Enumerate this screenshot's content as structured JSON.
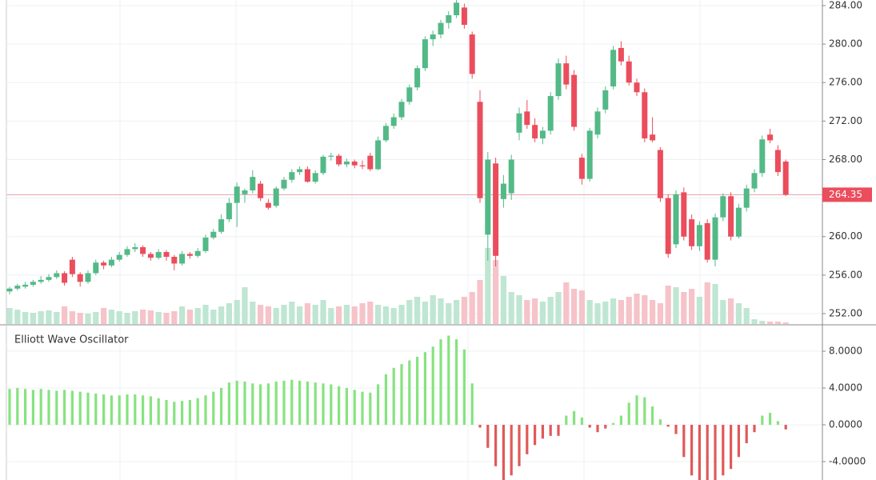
{
  "chart_data": [
    {
      "type": "candlestick",
      "ylim": [
        250.92,
        284.58
      ],
      "yticks": [
        {
          "value": 252,
          "label": "252.00"
        },
        {
          "value": 256,
          "label": "256.00"
        },
        {
          "value": 260,
          "label": "260.00"
        },
        {
          "value": 264,
          "label": "264.00"
        },
        {
          "value": 268,
          "label": "268.00"
        },
        {
          "value": 272,
          "label": "272.00"
        },
        {
          "value": 276,
          "label": "276.00"
        },
        {
          "value": 280,
          "label": "280.00"
        },
        {
          "value": 284,
          "label": "284.00"
        }
      ],
      "grid": true,
      "up_color": "#53b987",
      "down_color": "#eb4d5c",
      "volume_up_color": "#bfe6d2",
      "volume_down_color": "#f6c3c9",
      "last_price": {
        "value": 264.35,
        "label": "264.35"
      },
      "ohlc": [
        [
          254.3,
          254.8,
          254.0,
          254.6
        ],
        [
          254.6,
          255.1,
          254.4,
          254.9
        ],
        [
          254.8,
          255.3,
          254.6,
          255.0
        ],
        [
          255.0,
          255.5,
          254.8,
          255.3
        ],
        [
          255.3,
          255.9,
          255.1,
          255.5
        ],
        [
          255.5,
          256.1,
          255.3,
          255.8
        ],
        [
          255.8,
          256.5,
          255.6,
          256.2
        ],
        [
          256.2,
          256.4,
          254.9,
          255.2
        ],
        [
          257.6,
          257.9,
          255.8,
          256.1
        ],
        [
          256.1,
          256.3,
          254.8,
          255.3
        ],
        [
          255.3,
          256.5,
          255.1,
          256.2
        ],
        [
          256.2,
          257.6,
          256.0,
          257.3
        ],
        [
          257.3,
          257.5,
          256.6,
          257.0
        ],
        [
          257.0,
          257.9,
          256.8,
          257.6
        ],
        [
          257.6,
          258.4,
          257.4,
          258.1
        ],
        [
          258.1,
          259.0,
          257.9,
          258.7
        ],
        [
          258.7,
          259.3,
          258.4,
          258.9
        ],
        [
          258.9,
          259.1,
          257.9,
          258.2
        ],
        [
          258.2,
          258.4,
          257.5,
          257.8
        ],
        [
          257.8,
          258.7,
          257.6,
          258.4
        ],
        [
          258.4,
          258.6,
          257.5,
          257.9
        ],
        [
          257.9,
          258.1,
          256.5,
          257.2
        ],
        [
          257.2,
          258.5,
          257.0,
          258.2
        ],
        [
          258.2,
          258.4,
          257.7,
          258.0
        ],
        [
          258.0,
          258.8,
          257.8,
          258.5
        ],
        [
          258.5,
          260.2,
          258.3,
          259.9
        ],
        [
          259.9,
          260.8,
          259.7,
          260.5
        ],
        [
          260.5,
          262.3,
          260.3,
          261.8
        ],
        [
          261.8,
          264.0,
          261.5,
          263.5
        ],
        [
          263.5,
          265.6,
          261.0,
          265.2
        ],
        [
          264.4,
          265.0,
          263.5,
          264.8
        ],
        [
          264.8,
          266.9,
          264.5,
          266.2
        ],
        [
          265.5,
          265.8,
          263.7,
          264.0
        ],
        [
          263.5,
          263.9,
          262.8,
          263.0
        ],
        [
          263.2,
          265.2,
          263.0,
          265.0
        ],
        [
          265.0,
          266.2,
          264.8,
          265.9
        ],
        [
          265.9,
          267.0,
          265.6,
          266.7
        ],
        [
          266.7,
          267.3,
          266.4,
          267.0
        ],
        [
          267.0,
          267.3,
          265.6,
          265.7
        ],
        [
          265.7,
          266.9,
          265.5,
          266.6
        ],
        [
          266.6,
          268.5,
          266.4,
          268.3
        ],
        [
          268.3,
          268.7,
          267.9,
          268.4
        ],
        [
          268.4,
          268.6,
          267.3,
          267.5
        ],
        [
          267.5,
          268.1,
          267.2,
          267.8
        ],
        [
          267.8,
          268.0,
          267.1,
          267.4
        ],
        [
          267.4,
          267.9,
          267.0,
          267.3
        ],
        [
          268.4,
          268.7,
          266.8,
          267.0
        ],
        [
          267.0,
          270.4,
          266.9,
          270.0
        ],
        [
          270.0,
          271.8,
          269.8,
          271.5
        ],
        [
          271.5,
          272.8,
          271.2,
          272.4
        ],
        [
          272.4,
          274.3,
          272.1,
          274.0
        ],
        [
          274.0,
          275.8,
          273.7,
          275.5
        ],
        [
          275.5,
          277.8,
          275.2,
          277.5
        ],
        [
          277.5,
          280.8,
          277.2,
          280.5
        ],
        [
          280.5,
          281.4,
          279.8,
          281.0
        ],
        [
          281.0,
          282.5,
          280.6,
          282.2
        ],
        [
          282.2,
          283.4,
          281.6,
          283.0
        ],
        [
          283.0,
          284.6,
          282.7,
          284.3
        ],
        [
          283.8,
          284.2,
          281.6,
          282.0
        ],
        [
          281.0,
          281.3,
          276.4,
          276.9
        ],
        [
          274.0,
          275.2,
          263.5,
          264.0
        ],
        [
          260.2,
          268.8,
          257.5,
          268.0
        ],
        [
          267.6,
          268.2,
          256.9,
          258.0
        ],
        [
          263.9,
          266.4,
          263.0,
          265.5
        ],
        [
          264.5,
          268.5,
          263.8,
          268.0
        ],
        [
          270.8,
          273.4,
          270.0,
          272.8
        ],
        [
          273.0,
          274.2,
          271.2,
          271.6
        ],
        [
          271.6,
          272.3,
          269.8,
          270.2
        ],
        [
          270.2,
          271.4,
          269.6,
          271.0
        ],
        [
          271.0,
          275.0,
          270.6,
          274.6
        ],
        [
          274.6,
          278.5,
          274.2,
          278.0
        ],
        [
          278.0,
          278.8,
          275.3,
          275.8
        ],
        [
          276.8,
          277.3,
          271.0,
          271.4
        ],
        [
          268.2,
          268.6,
          265.4,
          266.0
        ],
        [
          266.0,
          271.3,
          265.7,
          271.0
        ],
        [
          270.6,
          273.4,
          270.2,
          273.0
        ],
        [
          273.2,
          275.6,
          272.8,
          275.2
        ],
        [
          275.6,
          279.8,
          275.3,
          279.4
        ],
        [
          279.6,
          280.3,
          277.8,
          278.2
        ],
        [
          278.2,
          278.8,
          275.7,
          276.0
        ],
        [
          276.0,
          276.4,
          274.6,
          275.0
        ],
        [
          275.0,
          275.4,
          269.8,
          270.2
        ],
        [
          270.6,
          272.4,
          269.8,
          270.0
        ],
        [
          269.0,
          269.3,
          263.6,
          264.0
        ],
        [
          264.0,
          264.4,
          257.8,
          258.2
        ],
        [
          259.2,
          264.8,
          258.8,
          264.4
        ],
        [
          264.6,
          265.1,
          259.6,
          260.0
        ],
        [
          261.8,
          262.3,
          258.6,
          259.0
        ],
        [
          259.0,
          261.6,
          258.5,
          261.2
        ],
        [
          261.4,
          261.8,
          257.3,
          257.6
        ],
        [
          257.6,
          262.4,
          256.9,
          262.0
        ],
        [
          262.0,
          264.5,
          261.6,
          264.2
        ],
        [
          264.2,
          264.6,
          259.6,
          260.0
        ],
        [
          260.0,
          263.4,
          259.8,
          263.0
        ],
        [
          263.0,
          265.4,
          262.6,
          265.0
        ],
        [
          265.0,
          267.0,
          264.6,
          266.6
        ],
        [
          266.6,
          270.5,
          266.2,
          270.1
        ],
        [
          270.6,
          271.2,
          269.7,
          270.0
        ],
        [
          269.0,
          269.5,
          266.3,
          266.7
        ],
        [
          267.8,
          268.0,
          264.2,
          264.35
        ]
      ],
      "volume": [
        20,
        18,
        15,
        14,
        16,
        17,
        15,
        22,
        16,
        14,
        13,
        15,
        20,
        18,
        16,
        14,
        16,
        18,
        17,
        15,
        14,
        16,
        22,
        18,
        20,
        24,
        18,
        22,
        26,
        30,
        46,
        28,
        24,
        22,
        20,
        24,
        28,
        22,
        26,
        24,
        30,
        20,
        22,
        24,
        22,
        26,
        28,
        24,
        22,
        20,
        24,
        30,
        34,
        28,
        36,
        32,
        26,
        30,
        34,
        40,
        55,
        95,
        80,
        60,
        40,
        36,
        30,
        32,
        28,
        34,
        40,
        52,
        44,
        42,
        30,
        26,
        28,
        32,
        30,
        34,
        38,
        36,
        30,
        26,
        48,
        46,
        40,
        44,
        34,
        52,
        50,
        30,
        32,
        26,
        20,
        6,
        4,
        3,
        3,
        2
      ]
    },
    {
      "type": "bar",
      "title": "Elliott Wave Oscillator",
      "ylim": [
        -6.0,
        10.7
      ],
      "yticks": [
        {
          "value": -4,
          "label": "-4.0000"
        },
        {
          "value": 0,
          "label": "0.0000"
        },
        {
          "value": 4,
          "label": "4.0000"
        },
        {
          "value": 8,
          "label": "8.0000"
        }
      ],
      "grid": true,
      "positive_color": "#86e37f",
      "negative_color": "#e0595a",
      "values": [
        3.9,
        4.0,
        3.9,
        3.8,
        3.9,
        3.8,
        3.7,
        3.8,
        3.7,
        3.6,
        3.5,
        3.4,
        3.3,
        3.2,
        3.2,
        3.3,
        3.3,
        3.2,
        3.1,
        2.9,
        2.7,
        2.5,
        2.6,
        2.7,
        2.9,
        3.2,
        3.6,
        4.0,
        4.6,
        4.8,
        4.7,
        4.5,
        4.4,
        4.5,
        4.7,
        4.8,
        4.9,
        4.8,
        4.7,
        4.6,
        4.5,
        4.4,
        4.2,
        4.0,
        3.8,
        3.6,
        3.5,
        4.4,
        5.5,
        6.2,
        6.6,
        7.0,
        7.4,
        7.9,
        8.5,
        9.3,
        9.7,
        9.3,
        8.2,
        4.5,
        -0.3,
        -2.5,
        -4.5,
        -6.0,
        -5.5,
        -4.5,
        -3.2,
        -2.2,
        -1.5,
        -1.2,
        -1.2,
        1.0,
        1.5,
        0.8,
        -0.3,
        -0.8,
        -0.4,
        0.2,
        1.0,
        2.4,
        3.2,
        3.0,
        2.0,
        0.6,
        -0.2,
        -1.0,
        -3.5,
        -5.5,
        -6.5,
        -6.5,
        -6.0,
        -5.5,
        -4.8,
        -3.5,
        -2.0,
        -0.8,
        1.0,
        1.3,
        0.4,
        -0.5
      ]
    }
  ]
}
